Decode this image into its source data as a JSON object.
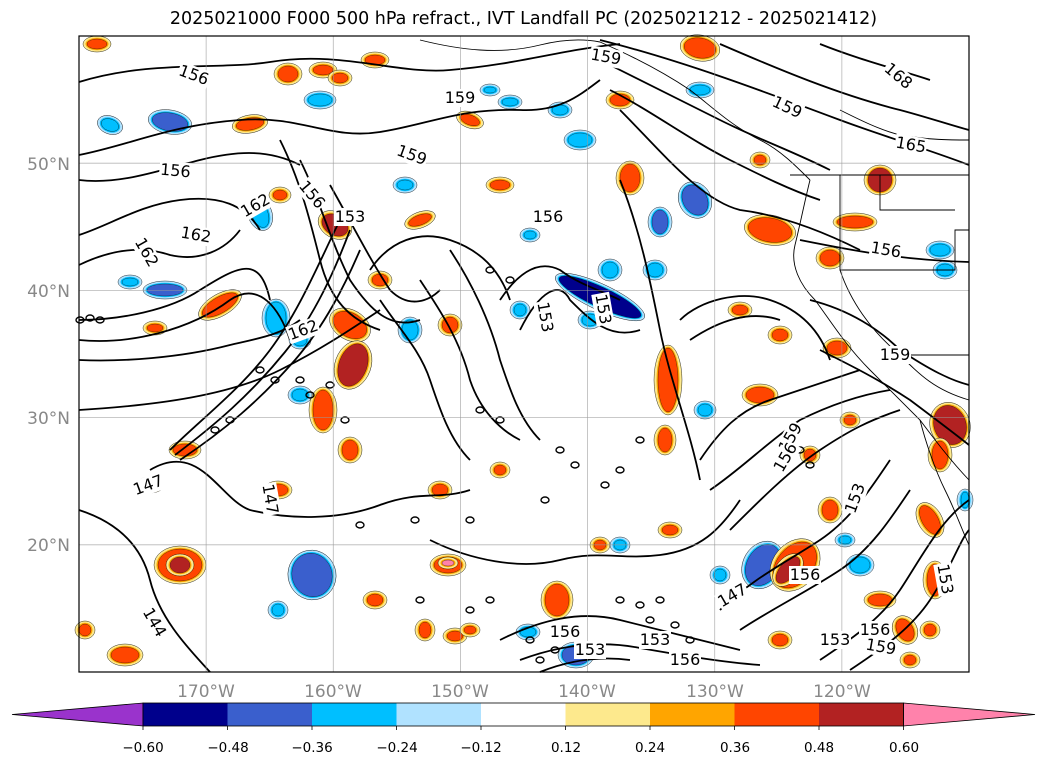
{
  "title": "2025021000 F000 500 hPa refract., IVT Landfall PC (2025021212 - 2025021412)",
  "map": {
    "projection": "PlateCarree",
    "lon_range": [
      -180,
      -110
    ],
    "lat_range": [
      10,
      60
    ],
    "gridlines": true,
    "coastlines": true,
    "borders": true
  },
  "axes": {
    "lon_ticks": [
      "170°W",
      "160°W",
      "150°W",
      "140°W",
      "130°W",
      "120°W"
    ],
    "lat_ticks": [
      "20°N",
      "30°N",
      "40°N",
      "50°N"
    ]
  },
  "contour_labels": [
    "156",
    "156",
    "159",
    "159",
    "159",
    "159",
    "162",
    "162",
    "168",
    "165",
    "162",
    "162",
    "156",
    "156",
    "153",
    "156",
    "153",
    "156",
    "159",
    "153",
    "147",
    "147",
    "159",
    "156",
    "153",
    "156",
    "153",
    "147",
    "144",
    "156",
    "153",
    "156",
    "153",
    "156",
    "159",
    "153"
  ],
  "colorbar": {
    "tick_labels": [
      "−0.60",
      "−0.48",
      "−0.36",
      "−0.24",
      "−0.12",
      "0.12",
      "0.24",
      "0.36",
      "0.48",
      "0.60"
    ],
    "colors": [
      "#9a33cc",
      "#00008c",
      "#3a5fcd",
      "#00bfff",
      "#b0e2ff",
      "#ffffff",
      "#fde98d",
      "#ffa500",
      "#ff4500",
      "#b22222",
      "#ff82ab"
    ],
    "extend": "both"
  },
  "chart_data": {
    "type": "heatmap",
    "title": "2025021000 F000 500 hPa refract., IVT Landfall PC (2025021212 - 2025021412)",
    "xlabel": "",
    "ylabel": "",
    "x_ticks": [
      "170°W",
      "160°W",
      "150°W",
      "140°W",
      "130°W",
      "120°W"
    ],
    "y_ticks": [
      "20°N",
      "30°N",
      "40°N",
      "50°N"
    ],
    "xlim": [
      -180,
      -110
    ],
    "ylim": [
      10,
      60
    ],
    "shading_levels": [
      -0.6,
      -0.48,
      -0.36,
      -0.24,
      -0.12,
      0.12,
      0.24,
      0.36,
      0.48,
      0.6
    ],
    "contour_levels": [
      144,
      147,
      153,
      156,
      159,
      162,
      165,
      168
    ]
  }
}
